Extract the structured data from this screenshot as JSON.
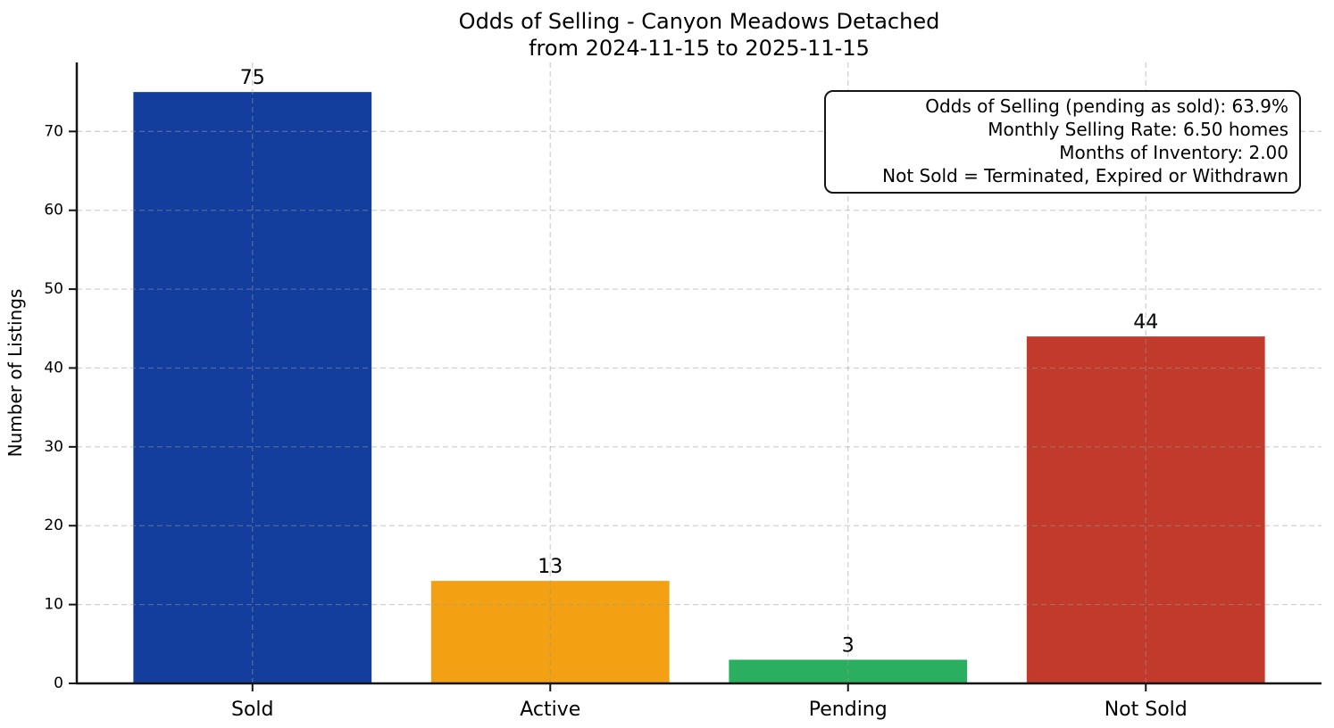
{
  "chart_data": {
    "type": "bar",
    "title": "Odds of Selling - Canyon Meadows Detached",
    "subtitle": "from 2024-11-15 to 2025-11-15",
    "categories": [
      "Sold",
      "Active",
      "Pending",
      "Not Sold"
    ],
    "values": [
      75,
      13,
      3,
      44
    ],
    "bar_colors": [
      "#133e9e",
      "#f3a013",
      "#2aae60",
      "#c23a2b"
    ],
    "xlabel": "",
    "ylabel": "Number of Listings",
    "yticks": [
      0,
      10,
      20,
      30,
      40,
      50,
      60,
      70
    ],
    "ylim": [
      0,
      78.75
    ],
    "grid": true,
    "grid_style": "dashed, both axes, drawn over bars",
    "legend": "none",
    "annotation": {
      "position": "top-right",
      "lines": [
        "Odds of Selling (pending as sold): 63.9%",
        "Monthly Selling Rate: 6.50 homes",
        "Months of Inventory: 2.00",
        "Not Sold = Terminated, Expired or Withdrawn"
      ]
    }
  }
}
